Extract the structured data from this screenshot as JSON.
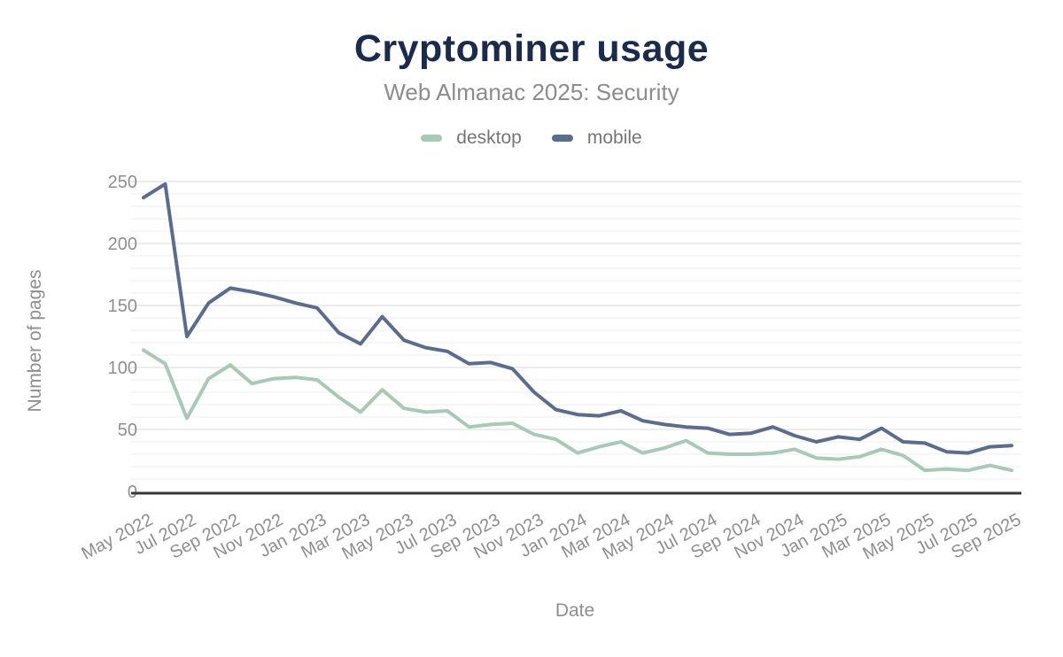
{
  "header": {
    "title": "Cryptominer usage",
    "subtitle": "Web Almanac 2025: Security"
  },
  "legend": {
    "items": [
      {
        "label": "desktop",
        "color": "#a7cab6"
      },
      {
        "label": "mobile",
        "color": "#5b6d8e"
      }
    ]
  },
  "chart_data": {
    "type": "line",
    "title": "Cryptominer usage",
    "subtitle": "Web Almanac 2025: Security",
    "xlabel": "Date",
    "ylabel": "Number of pages",
    "ylim": [
      0,
      250
    ],
    "yticks": [
      0,
      50,
      100,
      150,
      200,
      250
    ],
    "minor_grid_step": 10,
    "grid": "horizontal",
    "legend_position": "top",
    "xticks_shown_every": 2,
    "x": [
      "May 2022",
      "Jun 2022",
      "Jul 2022",
      "Aug 2022",
      "Sep 2022",
      "Oct 2022",
      "Nov 2022",
      "Dec 2022",
      "Jan 2023",
      "Feb 2023",
      "Mar 2023",
      "Apr 2023",
      "May 2023",
      "Jun 2023",
      "Jul 2023",
      "Aug 2023",
      "Sep 2023",
      "Oct 2023",
      "Nov 2023",
      "Dec 2023",
      "Jan 2024",
      "Feb 2024",
      "Mar 2024",
      "Apr 2024",
      "May 2024",
      "Jun 2024",
      "Jul 2024",
      "Aug 2024",
      "Sep 2024",
      "Oct 2024",
      "Nov 2024",
      "Dec 2024",
      "Jan 2025",
      "Feb 2025",
      "Mar 2025",
      "Apr 2025",
      "May 2025",
      "Jun 2025",
      "Jul 2025",
      "Aug 2025",
      "Sep 2025"
    ],
    "series": [
      {
        "name": "desktop",
        "color": "#a7cab6",
        "values": [
          114,
          103,
          59,
          91,
          102,
          87,
          91,
          92,
          90,
          76,
          64,
          82,
          67,
          64,
          65,
          52,
          54,
          55,
          46,
          42,
          31,
          36,
          40,
          31,
          35,
          41,
          31,
          30,
          30,
          31,
          34,
          27,
          26,
          28,
          34,
          29,
          17,
          18,
          17,
          21,
          17
        ]
      },
      {
        "name": "mobile",
        "color": "#5b6d8e",
        "values": [
          237,
          248,
          125,
          152,
          164,
          161,
          157,
          152,
          148,
          128,
          119,
          141,
          122,
          116,
          113,
          103,
          104,
          99,
          80,
          66,
          62,
          61,
          65,
          57,
          54,
          52,
          51,
          46,
          47,
          52,
          45,
          40,
          44,
          42,
          51,
          40,
          39,
          32,
          31,
          36,
          37
        ]
      }
    ]
  },
  "colors": {
    "title": "#1a2b4d",
    "subtitle": "#8c8c8c",
    "axis_text": "#8e8e8e",
    "legend_text": "#757575",
    "axis_line": "#37373b",
    "grid_major": "#ededed",
    "grid_minor": "#f6f6f6",
    "background": "#ffffff"
  }
}
